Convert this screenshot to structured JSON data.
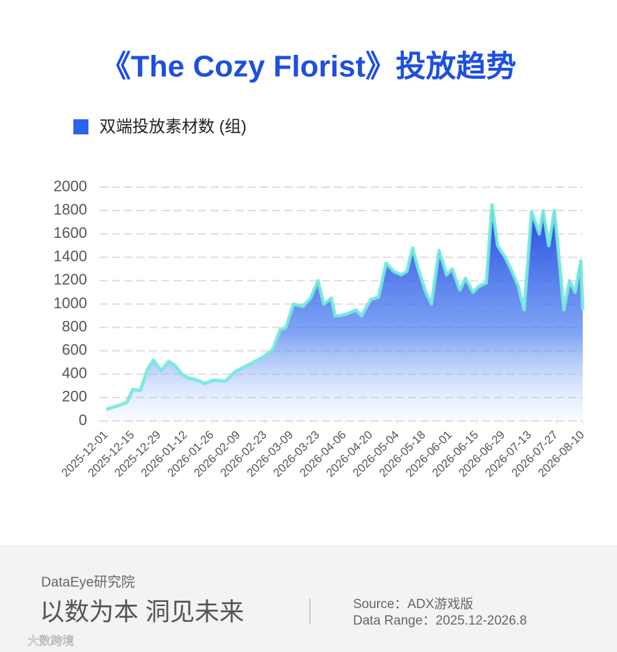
{
  "chart_data": {
    "type": "area",
    "title": "《The Cozy Florist》投放趋势",
    "x": [
      "2025-12-01",
      "2025-12-05",
      "2025-12-09",
      "2025-12-12",
      "2025-12-15",
      "2025-12-19",
      "2025-12-23",
      "2025-12-26",
      "2025-12-30",
      "2026-01-03",
      "2026-01-06",
      "2026-01-10",
      "2026-01-13",
      "2026-01-18",
      "2026-01-22",
      "2026-01-27",
      "2026-02-02",
      "2026-02-07",
      "2026-02-13",
      "2026-02-19",
      "2026-02-23",
      "2026-02-27",
      "2026-03-03",
      "2026-03-06",
      "2026-03-10",
      "2026-03-15",
      "2026-03-19",
      "2026-03-23",
      "2026-03-26",
      "2026-03-30",
      "2026-04-01",
      "2026-04-04",
      "2026-04-08",
      "2026-04-12",
      "2026-04-15",
      "2026-04-20",
      "2026-04-24",
      "2026-04-28",
      "2026-05-02",
      "2026-05-06",
      "2026-05-09",
      "2026-05-12",
      "2026-05-15",
      "2026-05-19",
      "2026-05-22",
      "2026-05-26",
      "2026-05-30",
      "2026-06-02",
      "2026-06-06",
      "2026-06-09",
      "2026-06-13",
      "2026-06-16",
      "2026-06-20",
      "2026-06-23",
      "2026-06-26",
      "2026-06-30",
      "2026-07-03",
      "2026-07-07",
      "2026-07-10",
      "2026-07-14",
      "2026-07-18",
      "2026-07-20",
      "2026-07-23",
      "2026-07-26",
      "2026-07-29",
      "2026-07-31",
      "2026-08-03",
      "2026-08-06",
      "2026-08-09",
      "2026-08-10"
    ],
    "series": [
      {
        "name": "双端投放素材数 (组)",
        "color": "#2f62ea",
        "line_color": "#72ead9",
        "values": [
          100,
          120,
          140,
          160,
          270,
          260,
          450,
          520,
          430,
          510,
          480,
          400,
          370,
          350,
          320,
          350,
          340,
          420,
          470,
          520,
          560,
          610,
          780,
          800,
          1000,
          980,
          1050,
          1200,
          1000,
          1050,
          900,
          900,
          920,
          950,
          900,
          1040,
          1060,
          1350,
          1280,
          1250,
          1280,
          1480,
          1300,
          1100,
          1000,
          1460,
          1250,
          1300,
          1120,
          1220,
          1100,
          1150,
          1180,
          1850,
          1500,
          1400,
          1300,
          1150,
          950,
          1790,
          1600,
          1800,
          1500,
          1800,
          1300,
          950,
          1200,
          1100,
          1370,
          950
        ]
      }
    ],
    "xlim": [
      "2025-12-01",
      "2026-08-10"
    ],
    "xticks": [
      "2025-12-01",
      "2025-12-15",
      "2025-12-29",
      "2026-01-12",
      "2026-01-26",
      "2026-02-09",
      "2026-02-23",
      "2026-03-09",
      "2026-03-23",
      "2026-04-06",
      "2026-04-20",
      "2026-05-04",
      "2026-05-18",
      "2026-06-01",
      "2026-06-15",
      "2026-06-29",
      "2026-07-13",
      "2026-07-27",
      "2026-08-10"
    ],
    "ylim": [
      0,
      2000
    ],
    "yticks": [
      0,
      200,
      400,
      600,
      800,
      1000,
      1200,
      1400,
      1600,
      1800,
      2000
    ],
    "grid": true
  },
  "footer": {
    "org": "DataEye研究院",
    "slogan": "以数为本 洞见未来",
    "source": "Source：ADX游戏版",
    "range": "Data Range：2025.12-2026.8",
    "watermark": "大数跨境"
  }
}
